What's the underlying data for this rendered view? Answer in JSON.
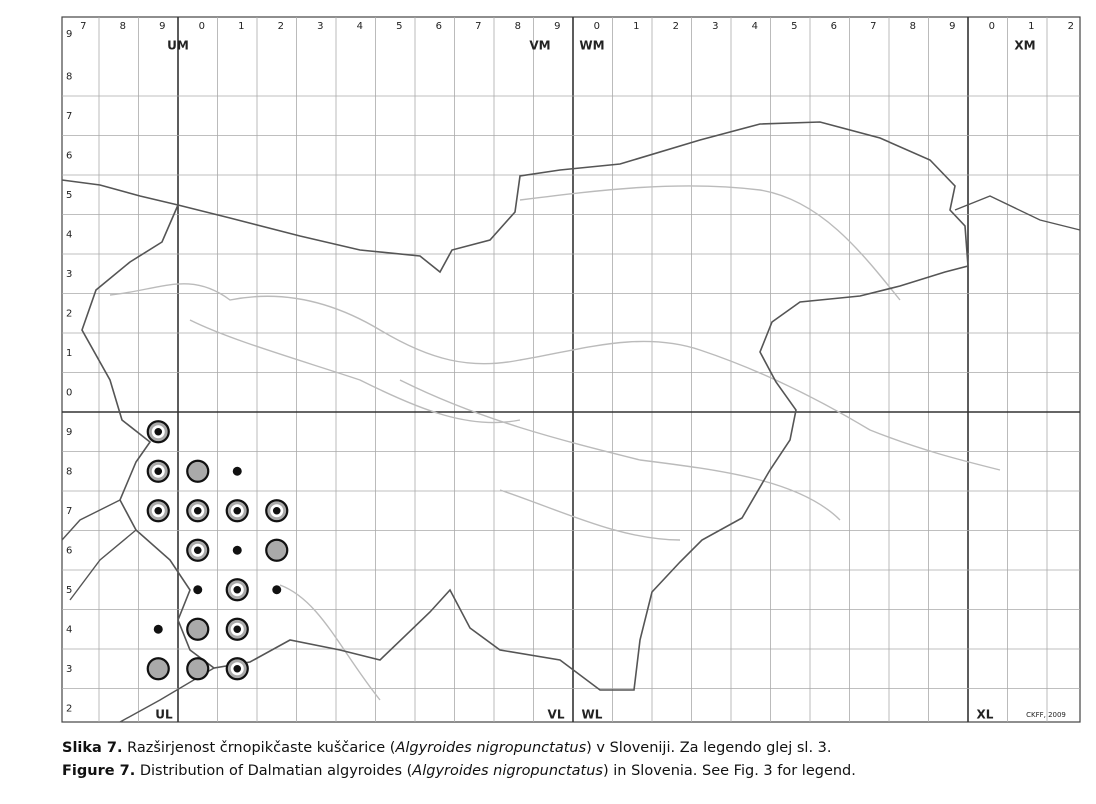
{
  "map": {
    "column_labels": [
      "7",
      "8",
      "9",
      "0",
      "1",
      "2",
      "3",
      "4",
      "5",
      "6",
      "7",
      "8",
      "9",
      "0",
      "1",
      "2",
      "3",
      "4",
      "5",
      "6",
      "7",
      "8",
      "9",
      "0",
      "1",
      "2"
    ],
    "row_labels_upper": [
      "9",
      "8",
      "7",
      "6",
      "5",
      "4",
      "3",
      "2",
      "1",
      "0"
    ],
    "row_labels_lower": [
      "9",
      "8",
      "7",
      "6",
      "5",
      "4",
      "3",
      "2"
    ],
    "zone_labels": {
      "UM": "UM",
      "VM": "VM",
      "WM": "WM",
      "XM": "XM",
      "UL": "UL",
      "VL": "VL",
      "WL": "WL",
      "XL": "XL"
    },
    "credit": "CKFF, 2009"
  },
  "caption": {
    "slovene": {
      "label": "Slika 7.",
      "before": " Razširjenost črnopikčaste kuščarice (",
      "species": "Algyroides nigropunctatus",
      "after": ") v Sloveniji. Za legendo glej sl. 3."
    },
    "english": {
      "label": "Figure 7.",
      "before": " Distribution of Dalmatian algyroides (",
      "species": "Algyroides nigropunctatus",
      "after": ") in Slovenia. See Fig. 3 for legend."
    }
  }
}
